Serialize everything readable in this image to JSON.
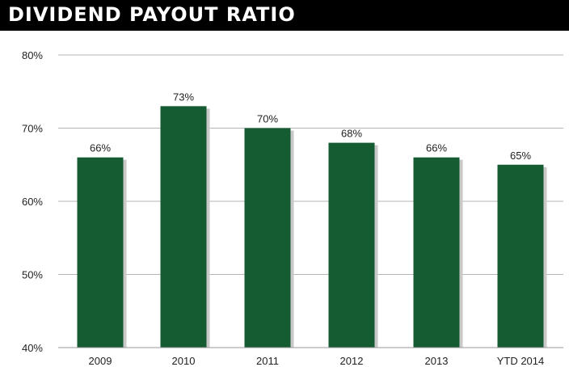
{
  "title": "DIVIDEND PAYOUT RATIO",
  "colors": {
    "bar": "#165c32",
    "bar_shadow": "#c9c9c9",
    "grid": "#b5b5b5",
    "title_bg": "#000000",
    "title_fg": "#ffffff"
  },
  "chart_data": {
    "type": "bar",
    "title": "DIVIDEND PAYOUT RATIO",
    "categories": [
      "2009",
      "2010",
      "2011",
      "2012",
      "2013",
      "YTD 2014"
    ],
    "values": [
      66,
      73,
      70,
      68,
      66,
      65
    ],
    "data_labels": [
      "66%",
      "73%",
      "70%",
      "68%",
      "66%",
      "65%"
    ],
    "ylim": [
      40,
      80
    ],
    "yticks": [
      40,
      50,
      60,
      70,
      80
    ],
    "ytick_labels": [
      "40%",
      "50%",
      "60%",
      "70%",
      "80%"
    ],
    "xlabel": "",
    "ylabel": "",
    "grid": true,
    "legend": false
  }
}
